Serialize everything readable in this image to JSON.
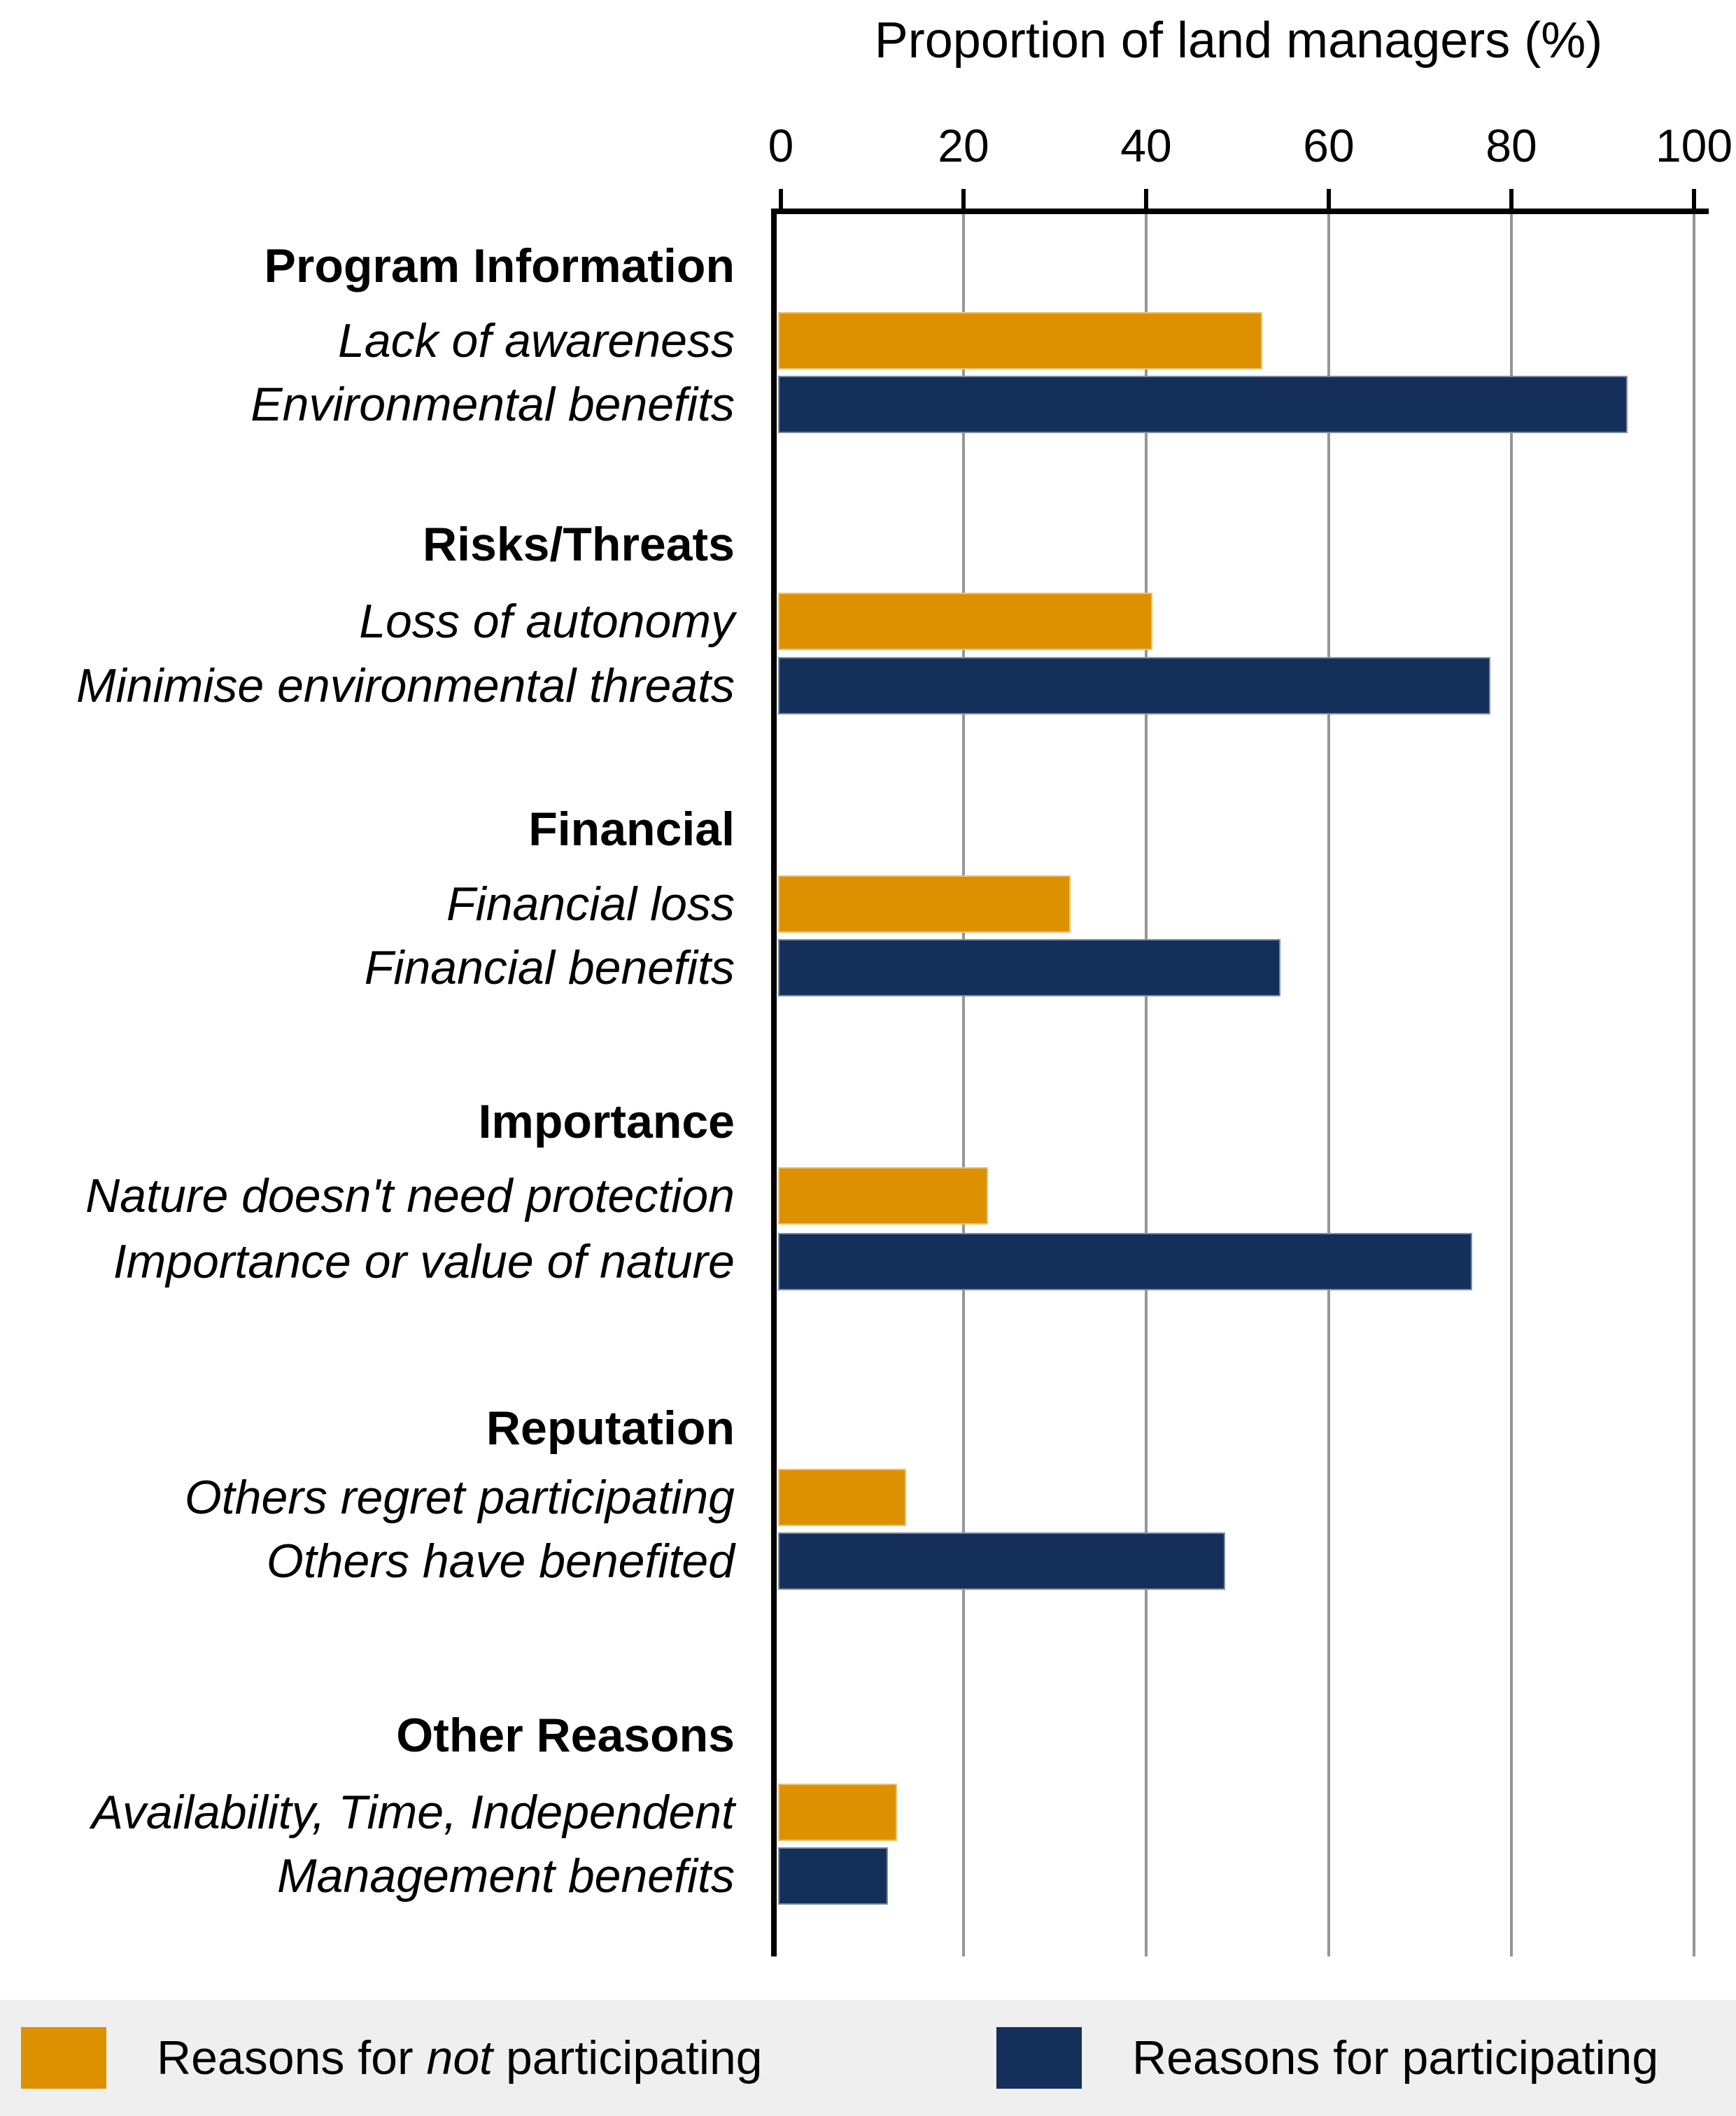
{
  "axis_title": "Proportion of land managers (%)",
  "legend": {
    "not": {
      "prefix": "Reasons for ",
      "italic": "not",
      "suffix": " participating"
    },
    "for": {
      "label": "Reasons for participating"
    }
  },
  "colors": {
    "not_participating": "#DD9100",
    "participating": "#14305A",
    "gridline": "#969696",
    "axis": "#000000",
    "legend_background": "#EFEFEF"
  },
  "chart_data": {
    "type": "bar",
    "orientation": "horizontal",
    "xlabel": "Proportion of land managers (%)",
    "xlim": [
      0,
      100
    ],
    "xticks": [
      0,
      20,
      40,
      60,
      80,
      100
    ],
    "grid": "vertical gridlines at each tick",
    "legend_position": "bottom",
    "series": [
      {
        "name": "Reasons for not participating",
        "color": "#DD9100"
      },
      {
        "name": "Reasons for participating",
        "color": "#14305A"
      }
    ],
    "groups": [
      {
        "category": "Program Information",
        "bars": [
          {
            "label": "Lack of awareness",
            "series": 0,
            "value": 53
          },
          {
            "label": "Environmental benefits",
            "series": 1,
            "value": 93
          }
        ]
      },
      {
        "category": "Risks/Threats",
        "bars": [
          {
            "label": "Loss of autonomy",
            "series": 0,
            "value": 41
          },
          {
            "label": "Minimise environmental threats",
            "series": 1,
            "value": 78
          }
        ]
      },
      {
        "category": "Financial",
        "bars": [
          {
            "label": "Financial loss",
            "series": 0,
            "value": 32
          },
          {
            "label": "Financial benefits",
            "series": 1,
            "value": 55
          }
        ]
      },
      {
        "category": "Importance",
        "bars": [
          {
            "label": "Nature doesn't need protection",
            "series": 0,
            "value": 23
          },
          {
            "label": "Importance or value of nature",
            "series": 1,
            "value": 76
          }
        ]
      },
      {
        "category": "Reputation",
        "bars": [
          {
            "label": "Others regret participating",
            "series": 0,
            "value": 14
          },
          {
            "label": "Others have benefited",
            "series": 1,
            "value": 49
          }
        ]
      },
      {
        "category": "Other Reasons",
        "bars": [
          {
            "label": "Availability, Time, Independent",
            "series": 0,
            "value": 13
          },
          {
            "label": "Management benefits",
            "series": 1,
            "value": 12
          }
        ]
      }
    ]
  }
}
